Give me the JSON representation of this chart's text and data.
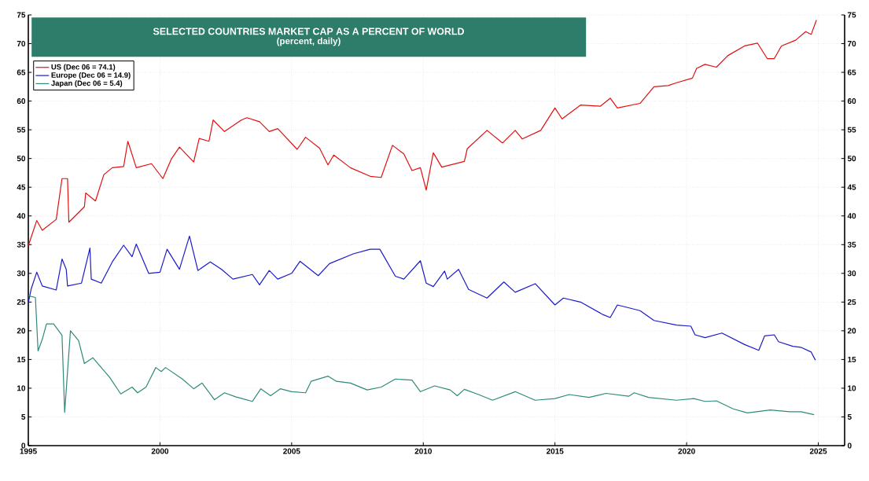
{
  "chart_data": {
    "type": "line",
    "title": "SELECTED COUNTRIES MARKET CAP AS A PERCENT OF WORLD",
    "subtitle": "(percent, daily)",
    "xlim": [
      1995,
      2026
    ],
    "xticks": [
      1995,
      2000,
      2005,
      2010,
      2015,
      2020,
      2025
    ],
    "ylim": [
      0,
      75
    ],
    "yticks": [
      0,
      5,
      10,
      15,
      20,
      25,
      30,
      35,
      40,
      45,
      50,
      55,
      60,
      65,
      70,
      75
    ],
    "y2lim": [
      0,
      75
    ],
    "y2ticks": [
      0,
      5,
      10,
      15,
      20,
      25,
      30,
      35,
      40,
      45,
      50,
      55,
      60,
      65,
      70,
      75
    ],
    "grid": true,
    "legend": "top left",
    "line_style": "solid",
    "series": [
      {
        "name": "US (Dec 06 = 74.1)",
        "color": "#e01010",
        "x": [
          1995.0,
          1995.32,
          1995.53,
          1996.06,
          1996.28,
          1996.49,
          1996.54,
          1997.13,
          1997.18,
          1997.55,
          1997.87,
          1998.19,
          1998.62,
          1998.78,
          1999.1,
          1999.68,
          2000.11,
          2000.43,
          2000.74,
          2001.28,
          2001.49,
          2001.86,
          2002.02,
          2002.45,
          2003.09,
          2003.3,
          2003.78,
          2004.15,
          2004.47,
          2005.21,
          2005.53,
          2006.06,
          2006.38,
          2006.6,
          2007.23,
          2007.98,
          2008.4,
          2008.83,
          2009.26,
          2009.57,
          2009.89,
          2010.11,
          2010.38,
          2010.7,
          2011.56,
          2011.67,
          2012.42,
          2013.01,
          2013.49,
          2013.76,
          2014.46,
          2015.0,
          2015.27,
          2015.97,
          2016.72,
          2017.1,
          2017.37,
          2018.23,
          2018.76,
          2019.3,
          2019.62,
          2020.22,
          2020.38,
          2020.7,
          2021.13,
          2021.56,
          2022.2,
          2022.69,
          2023.06,
          2023.33,
          2023.6,
          2024.14,
          2024.52,
          2024.73,
          2024.93
        ],
        "values": [
          34.8,
          39.2,
          37.5,
          39.4,
          46.5,
          46.5,
          38.9,
          41.6,
          44,
          42.6,
          47.2,
          48.4,
          48.6,
          53,
          48.4,
          49.1,
          46.5,
          49.9,
          52,
          49.4,
          53.5,
          53,
          56.7,
          54.7,
          56.7,
          57.1,
          56.4,
          54.7,
          55.2,
          51.6,
          53.7,
          51.8,
          48.9,
          50.6,
          48.4,
          46.9,
          46.7,
          52.3,
          50.8,
          47.9,
          48.4,
          44.5,
          51,
          48.5,
          49.5,
          51.7,
          54.9,
          52.7,
          54.9,
          53.4,
          54.9,
          58.8,
          56.9,
          59.3,
          59.1,
          60.5,
          58.8,
          59.6,
          62.5,
          62.7,
          63.2,
          64,
          65.7,
          66.4,
          65.9,
          67.9,
          69.6,
          70.1,
          67.4,
          67.4,
          69.6,
          70.6,
          72.1,
          71.6,
          74.1
        ]
      },
      {
        "name": "Europe (Dec 06 = 14.9)",
        "color": "#1a1acc",
        "x": [
          1995.0,
          1995.11,
          1995.32,
          1995.53,
          1996.06,
          1996.28,
          1996.44,
          1996.49,
          1997.02,
          1997.34,
          1997.39,
          1997.77,
          1998.19,
          1998.62,
          1998.94,
          1999.1,
          1999.57,
          2000.0,
          2000.27,
          2000.74,
          2001.12,
          2001.44,
          2001.91,
          2002.34,
          2002.77,
          2003.51,
          2003.78,
          2004.15,
          2004.47,
          2005.0,
          2005.32,
          2006.01,
          2006.44,
          2007.34,
          2007.98,
          2008.35,
          2008.94,
          2009.26,
          2009.89,
          2010.11,
          2010.38,
          2010.81,
          2010.91,
          2011.34,
          2011.72,
          2012.42,
          2013.06,
          2013.49,
          2014.25,
          2015.0,
          2015.32,
          2015.97,
          2016.83,
          2017.1,
          2017.37,
          2018.23,
          2018.76,
          2019.62,
          2020.16,
          2020.32,
          2020.7,
          2021.34,
          2022.2,
          2022.74,
          2022.96,
          2023.33,
          2023.49,
          2024.03,
          2024.35,
          2024.73,
          2024.89
        ],
        "values": [
          24.9,
          27.3,
          30.2,
          27.8,
          27.1,
          32.5,
          30.7,
          27.8,
          28.3,
          34.4,
          29,
          28.3,
          32,
          34.9,
          32.9,
          35.1,
          30,
          30.2,
          34.2,
          30.7,
          36.5,
          30.5,
          32,
          30.7,
          29,
          29.8,
          28,
          30.5,
          29,
          30,
          32.1,
          29.6,
          31.7,
          33.4,
          34.2,
          34.2,
          29.5,
          29,
          32.2,
          28.3,
          27.7,
          30.4,
          29,
          30.7,
          27.2,
          25.7,
          28.5,
          26.7,
          28.2,
          24.5,
          25.7,
          25,
          22.8,
          22.3,
          24.5,
          23.5,
          21.8,
          21,
          20.8,
          19.3,
          18.8,
          19.6,
          17.6,
          16.6,
          19.1,
          19.3,
          18.1,
          17.3,
          17.1,
          16.3,
          14.9
        ]
      },
      {
        "name": "Japan (Dec 06 = 5.4)",
        "color": "#2e8b7a",
        "x": [
          1995.0,
          1995.27,
          1995.37,
          1995.53,
          1995.69,
          1995.96,
          1996.28,
          1996.38,
          1996.6,
          1996.91,
          1997.13,
          1997.45,
          1998.09,
          1998.51,
          1998.94,
          1999.15,
          1999.47,
          1999.84,
          2000.05,
          2000.21,
          2000.85,
          2001.28,
          2001.6,
          2002.07,
          2002.45,
          2002.87,
          2003.51,
          2003.83,
          2004.2,
          2004.57,
          2005.0,
          2005.53,
          2005.74,
          2006.38,
          2006.7,
          2007.23,
          2007.87,
          2008.4,
          2008.94,
          2009.57,
          2009.89,
          2010.43,
          2011.02,
          2011.29,
          2011.56,
          2012.1,
          2012.63,
          2013.49,
          2014.25,
          2015.0,
          2015.54,
          2016.29,
          2016.94,
          2017.8,
          2018.01,
          2018.55,
          2019.62,
          2020.27,
          2020.7,
          2021.13,
          2021.77,
          2022.31,
          2023.17,
          2023.92,
          2024.35,
          2024.84
        ],
        "values": [
          26.1,
          25.8,
          16.5,
          18.5,
          21.2,
          21.2,
          19.2,
          5.8,
          20,
          18.3,
          14.3,
          15.3,
          11.9,
          9,
          10.2,
          9.2,
          10.2,
          13.6,
          12.9,
          13.6,
          11.6,
          9.9,
          10.9,
          8,
          9.2,
          8.5,
          7.7,
          9.9,
          8.7,
          9.9,
          9.4,
          9.2,
          11.2,
          12.1,
          11.2,
          10.9,
          9.7,
          10.2,
          11.6,
          11.4,
          9.4,
          10.4,
          9.7,
          8.7,
          9.8,
          8.9,
          7.9,
          9.4,
          7.9,
          8.2,
          8.9,
          8.4,
          9.1,
          8.6,
          9.2,
          8.4,
          7.9,
          8.2,
          7.7,
          7.8,
          6.4,
          5.7,
          6.2,
          5.9,
          5.9,
          5.4
        ]
      }
    ]
  }
}
